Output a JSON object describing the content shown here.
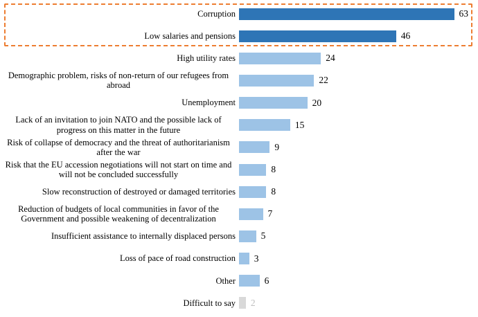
{
  "chart_data": {
    "type": "bar",
    "orientation": "horizontal",
    "title": "",
    "xlabel": "",
    "ylabel": "",
    "xlim": [
      0,
      70
    ],
    "grid": false,
    "legend": "none",
    "highlight_box": {
      "style": "dashed-orange-rectangle",
      "covers_items": [
        "Corruption",
        "Low salaries and pensions"
      ]
    },
    "items": [
      {
        "label": "Corruption",
        "value": 63,
        "emphasis": "highlight"
      },
      {
        "label": "Low salaries and pensions",
        "value": 46,
        "emphasis": "highlight"
      },
      {
        "label": "High utility rates",
        "value": 24,
        "emphasis": "normal"
      },
      {
        "label": "Demographic problem, risks of non-return of our refugees from abroad",
        "value": 22,
        "emphasis": "normal"
      },
      {
        "label": "Unemployment",
        "value": 20,
        "emphasis": "normal"
      },
      {
        "label": "Lack of an invitation to join NATO and the possible lack of progress on this matter in the future",
        "value": 15,
        "emphasis": "normal"
      },
      {
        "label": "Risk of collapse of democracy and the threat of authoritarianism after the war",
        "value": 9,
        "emphasis": "normal"
      },
      {
        "label": "Risk that the EU accession negotiations will not start on time and will not be concluded successfully",
        "value": 8,
        "emphasis": "normal"
      },
      {
        "label": "Slow reconstruction of destroyed or damaged territories",
        "value": 8,
        "emphasis": "normal"
      },
      {
        "label": "Reduction of budgets of local communities in favor of the Government and possible weakening of decentralization",
        "value": 7,
        "emphasis": "normal"
      },
      {
        "label": "Insufficient assistance to internally displaced persons",
        "value": 5,
        "emphasis": "normal"
      },
      {
        "label": "Loss of pace of road construction",
        "value": 3,
        "emphasis": "normal"
      },
      {
        "label": "Other",
        "value": 6,
        "emphasis": "normal"
      },
      {
        "label": "Difficult to say",
        "value": 2,
        "emphasis": "muted"
      }
    ],
    "colors": {
      "highlight": "#2E75B6",
      "normal": "#9DC3E6",
      "muted": "#D9D9D9",
      "muted_value_text": "#BFBFBF",
      "highlight_border": "#ED7D31"
    }
  }
}
